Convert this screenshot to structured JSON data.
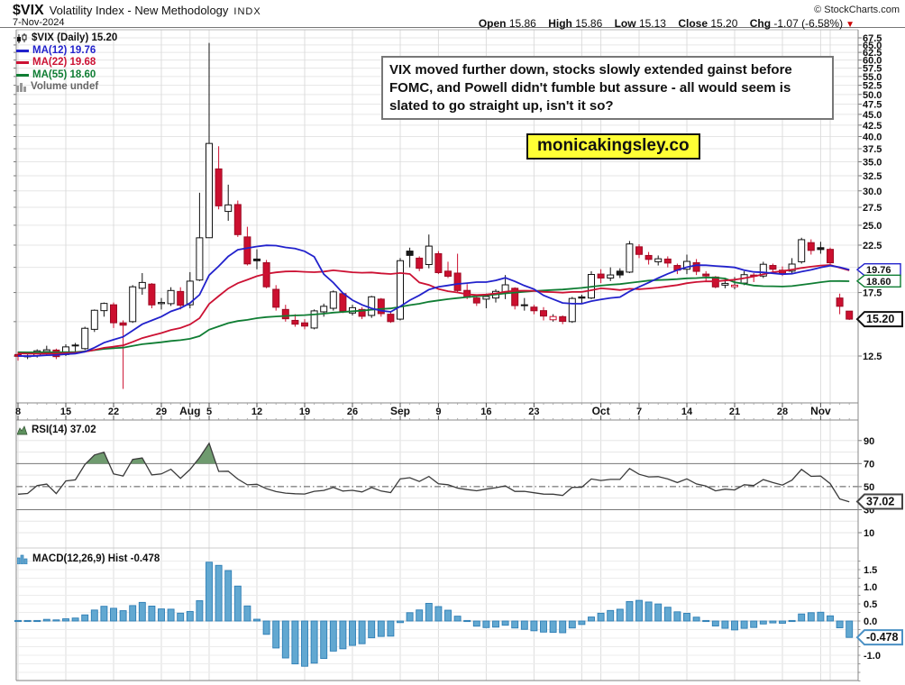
{
  "header": {
    "symbol": "$VIX",
    "subtitle": "Volatility Index - New Methodology",
    "exchange": "INDX",
    "date": "7-Nov-2024",
    "copyright": "© StockCharts.com"
  },
  "quote": {
    "open_label": "Open",
    "open": "15.86",
    "high_label": "High",
    "high": "15.86",
    "low_label": "Low",
    "low": "15.13",
    "close_label": "Close",
    "close": "15.20",
    "chg_label": "Chg",
    "chg": "-1.07 (-6.58%)"
  },
  "legend": {
    "vix": "$VIX (Daily) 15.20",
    "ma12": "MA(12) 19.76",
    "ma22": "MA(22) 19.68",
    "ma55": "MA(55) 18.60",
    "volume": "Volume undef"
  },
  "panels": {
    "rsi_label": "RSI(14) 37.02",
    "macd_label": "MACD(12,26,9) Hist -0.478"
  },
  "annotation": {
    "text": "VIX moved further down, stocks slowly extended gainst before FOMC, and Powell didn't fumble but assure - all would seem is slated to go straight up, isn't it so?"
  },
  "watermark": {
    "text": "monicakingsley.co"
  },
  "chart_data": {
    "type": "candlestick",
    "symbol": "$VIX",
    "price_axis": {
      "scale": "log",
      "tick_min": 12.5,
      "tick_max": 67.5,
      "tick_step": 2.5
    },
    "rsi_axis": {
      "labels": [
        90,
        70,
        50,
        30,
        10
      ],
      "overbought": 70,
      "oversold": 30,
      "mid": 50
    },
    "macd_axis": {
      "labels": [
        1.5,
        1.0,
        0.5,
        0.0,
        -1.0
      ]
    },
    "candles": [
      [
        12.6,
        12.8,
        12.2,
        12.48
      ],
      [
        12.45,
        12.6,
        12.3,
        12.51
      ],
      [
        12.5,
        12.95,
        12.4,
        12.85
      ],
      [
        12.8,
        13.2,
        12.5,
        12.92
      ],
      [
        12.9,
        13.0,
        12.3,
        12.46
      ],
      [
        12.6,
        13.3,
        12.5,
        13.12
      ],
      [
        13.25,
        13.4,
        12.8,
        13.19
      ],
      [
        13.0,
        14.6,
        12.9,
        14.48
      ],
      [
        14.4,
        16.0,
        14.2,
        15.93
      ],
      [
        15.9,
        16.6,
        15.4,
        16.52
      ],
      [
        16.4,
        16.6,
        14.5,
        14.91
      ],
      [
        14.9,
        15.1,
        10.5,
        14.72
      ],
      [
        15.0,
        18.2,
        14.9,
        18.04
      ],
      [
        17.9,
        19.4,
        17.3,
        18.46
      ],
      [
        18.3,
        18.4,
        16.1,
        16.39
      ],
      [
        16.5,
        17.0,
        16.0,
        16.6
      ],
      [
        16.5,
        18.0,
        16.3,
        17.69
      ],
      [
        17.6,
        18.0,
        16.0,
        16.36
      ],
      [
        16.4,
        19.5,
        16.1,
        18.59
      ],
      [
        18.7,
        29.7,
        18.6,
        23.39
      ],
      [
        23.4,
        65.7,
        23.4,
        38.57
      ],
      [
        33.7,
        38.0,
        27.2,
        27.71
      ],
      [
        26.9,
        31.0,
        25.6,
        27.85
      ],
      [
        27.9,
        28.5,
        23.5,
        23.79
      ],
      [
        23.5,
        24.8,
        20.2,
        20.37
      ],
      [
        20.9,
        22.0,
        19.8,
        20.71
      ],
      [
        20.5,
        20.8,
        17.9,
        18.04
      ],
      [
        17.8,
        18.2,
        15.9,
        16.19
      ],
      [
        16.0,
        16.4,
        15.0,
        15.23
      ],
      [
        15.1,
        15.6,
        14.6,
        14.8
      ],
      [
        14.9,
        15.2,
        14.4,
        14.65
      ],
      [
        14.5,
        16.0,
        14.4,
        15.88
      ],
      [
        15.8,
        16.5,
        15.4,
        16.27
      ],
      [
        16.1,
        17.7,
        15.9,
        17.56
      ],
      [
        17.4,
        17.5,
        15.7,
        15.86
      ],
      [
        15.7,
        16.4,
        15.5,
        16.15
      ],
      [
        16.0,
        16.2,
        15.2,
        15.43
      ],
      [
        15.5,
        17.2,
        15.3,
        17.11
      ],
      [
        16.9,
        17.0,
        15.4,
        15.65
      ],
      [
        15.6,
        15.8,
        14.9,
        15.0
      ],
      [
        15.2,
        21.0,
        15.1,
        20.72
      ],
      [
        21.8,
        22.2,
        20.0,
        21.31
      ],
      [
        21.0,
        21.2,
        19.6,
        19.9
      ],
      [
        20.3,
        23.8,
        19.9,
        22.38
      ],
      [
        21.5,
        21.8,
        19.3,
        19.45
      ],
      [
        19.6,
        20.6,
        18.9,
        19.08
      ],
      [
        19.4,
        21.5,
        17.5,
        17.69
      ],
      [
        17.7,
        18.3,
        16.9,
        17.07
      ],
      [
        17.0,
        17.3,
        16.3,
        16.56
      ],
      [
        16.9,
        17.4,
        16.1,
        17.14
      ],
      [
        17.0,
        17.8,
        16.6,
        17.61
      ],
      [
        17.5,
        19.2,
        16.9,
        18.23
      ],
      [
        17.9,
        18.0,
        16.0,
        16.33
      ],
      [
        16.4,
        17.0,
        15.9,
        16.35
      ],
      [
        16.2,
        16.4,
        15.6,
        15.89
      ],
      [
        15.9,
        16.2,
        15.1,
        15.45
      ],
      [
        15.15,
        15.6,
        15.0,
        15.41
      ],
      [
        15.4,
        15.5,
        14.8,
        15.02
      ],
      [
        15.0,
        17.1,
        14.9,
        16.96
      ],
      [
        17.1,
        17.3,
        16.5,
        16.99
      ],
      [
        17.0,
        19.6,
        16.9,
        19.26
      ],
      [
        19.3,
        19.8,
        18.4,
        18.9
      ],
      [
        18.9,
        20.0,
        18.6,
        19.21
      ],
      [
        19.6,
        19.9,
        18.9,
        19.21
      ],
      [
        19.5,
        23.0,
        19.4,
        22.64
      ],
      [
        22.3,
        22.6,
        21.0,
        21.42
      ],
      [
        21.3,
        21.7,
        20.3,
        20.86
      ],
      [
        20.6,
        21.3,
        20.2,
        20.93
      ],
      [
        20.9,
        21.2,
        20.0,
        20.46
      ],
      [
        20.2,
        20.4,
        19.3,
        19.7
      ],
      [
        19.8,
        21.4,
        19.3,
        20.64
      ],
      [
        20.5,
        20.9,
        19.2,
        19.58
      ],
      [
        19.3,
        19.6,
        18.6,
        19.11
      ],
      [
        19.0,
        19.1,
        17.9,
        18.03
      ],
      [
        18.2,
        18.9,
        17.9,
        18.37
      ],
      [
        18.05,
        19.0,
        17.8,
        18.2
      ],
      [
        18.4,
        19.6,
        18.2,
        19.24
      ],
      [
        19.2,
        19.4,
        18.5,
        19.08
      ],
      [
        19.1,
        20.6,
        18.9,
        20.33
      ],
      [
        20.2,
        20.4,
        19.5,
        19.8
      ],
      [
        19.7,
        20.1,
        19.1,
        19.34
      ],
      [
        19.6,
        21.0,
        19.3,
        20.35
      ],
      [
        20.6,
        23.4,
        20.4,
        23.16
      ],
      [
        22.8,
        23.2,
        21.4,
        21.88
      ],
      [
        22.2,
        22.9,
        21.5,
        21.98
      ],
      [
        22.0,
        22.2,
        20.2,
        20.49
      ],
      [
        17.0,
        17.4,
        15.6,
        16.27
      ],
      [
        15.86,
        15.86,
        15.13,
        15.2
      ]
    ],
    "warmup_closes": [
      13.4,
      13.2,
      13.0,
      12.8,
      12.9,
      13.1,
      12.9,
      12.7,
      12.6,
      12.8,
      13.0,
      12.7,
      12.5,
      12.4,
      12.6,
      12.9,
      13.2,
      13.4,
      13.1,
      12.8,
      12.6,
      12.4,
      12.3,
      12.5,
      12.7,
      12.9,
      12.6,
      12.4,
      12.3,
      12.2
    ],
    "x_ticks": [
      {
        "i": 0,
        "label": "8",
        "month": false
      },
      {
        "i": 5,
        "label": "15",
        "month": false
      },
      {
        "i": 10,
        "label": "22",
        "month": false
      },
      {
        "i": 15,
        "label": "29",
        "month": false
      },
      {
        "i": 18,
        "label": "Aug",
        "month": true
      },
      {
        "i": 20,
        "label": "5",
        "month": false
      },
      {
        "i": 25,
        "label": "12",
        "month": false
      },
      {
        "i": 30,
        "label": "19",
        "month": false
      },
      {
        "i": 35,
        "label": "26",
        "month": false
      },
      {
        "i": 40,
        "label": "Sep",
        "month": true
      },
      {
        "i": 44,
        "label": "9",
        "month": false
      },
      {
        "i": 49,
        "label": "16",
        "month": false
      },
      {
        "i": 54,
        "label": "23",
        "month": false
      },
      {
        "i": 61,
        "label": "Oct",
        "month": true
      },
      {
        "i": 65,
        "label": "7",
        "month": false
      },
      {
        "i": 70,
        "label": "14",
        "month": false
      },
      {
        "i": 75,
        "label": "21",
        "month": false
      },
      {
        "i": 80,
        "label": "28",
        "month": false
      },
      {
        "i": 84,
        "label": "Nov",
        "month": true
      }
    ],
    "x_gridlines": [
      0,
      5,
      10,
      15,
      18,
      20,
      25,
      30,
      35,
      40,
      44,
      49,
      54,
      59,
      61,
      65,
      70,
      75,
      80,
      84,
      85
    ],
    "ma": [
      {
        "period": 12,
        "color": "#2222cc",
        "last": "19.76"
      },
      {
        "period": 22,
        "color": "#cc1133",
        "last": "19.68"
      },
      {
        "period": 55,
        "color": "#0f7d33",
        "last": "18.60"
      }
    ],
    "price_callouts": [
      {
        "text": "19.76",
        "value": 19.76,
        "color": "#2222cc",
        "bold": false
      },
      {
        "text": "18.60",
        "value": 18.6,
        "color": "#0f7d33",
        "bold": false
      },
      {
        "text": "15.20",
        "value": 15.2,
        "color": "#111111",
        "bold": true
      }
    ],
    "rsi": {
      "period": 14,
      "value": 37.02,
      "callout": "37.02"
    },
    "macd": {
      "fast": 12,
      "slow": 26,
      "signal": 9,
      "hist_value": -0.478,
      "callout": "-0.478"
    },
    "colors": {
      "up_stroke": "#111111",
      "down_fill": "#cc0f2f",
      "black_fill": "#1a1a1a",
      "macd_fill": "#62a8d1",
      "macd_stroke": "#2e7eb5",
      "rsi_line": "#3a3a3a",
      "rsi_fill": "#6f9b6f",
      "grid_h": "#e6e6e6",
      "grid_v": "#dcdcdc",
      "border": "#888888",
      "chg_down": "#cc0000"
    }
  }
}
